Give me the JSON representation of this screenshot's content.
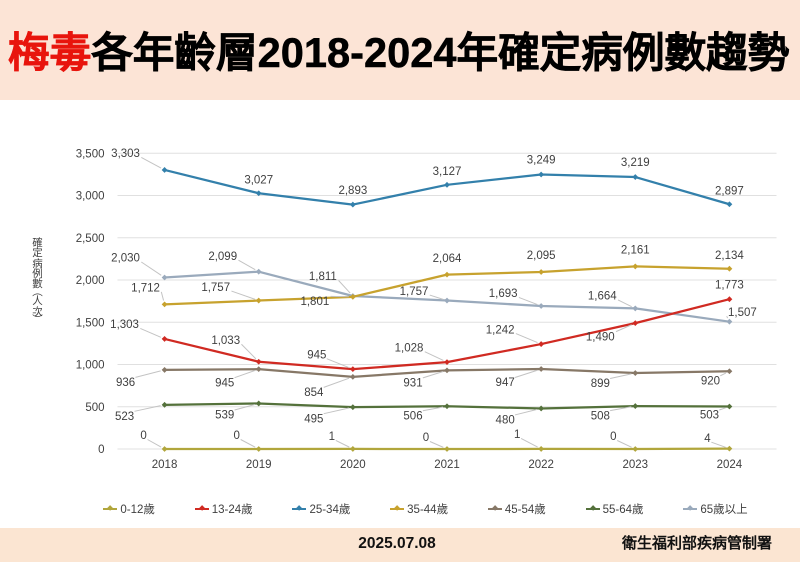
{
  "title": {
    "highlight": "梅毒",
    "rest": "各年齡層2018-2024年確定病例數趨勢"
  },
  "chart_data": {
    "type": "line",
    "title": "梅毒各年齡層2018-2024年確定病例數趨勢",
    "categories": [
      "2018",
      "2019",
      "2020",
      "2021",
      "2022",
      "2023",
      "2024"
    ],
    "xlabel": "",
    "ylabel": "確定病例數(人次)",
    "ylim": [
      0,
      3500
    ],
    "ytick_step": 500,
    "ytick_labels": [
      "0",
      "500",
      "1,000",
      "1,500",
      "2,000",
      "2,500",
      "3,000",
      "3,500"
    ],
    "grid": true,
    "legend_position": "bottom",
    "marker": "diamond",
    "series": [
      {
        "name": "0-12歲",
        "color": "#b1a63c",
        "values": [
          0,
          0,
          1,
          0,
          1,
          0,
          4
        ]
      },
      {
        "name": "13-24歲",
        "color": "#d02a22",
        "values": [
          1303,
          1033,
          945,
          1028,
          1242,
          1490,
          1773
        ]
      },
      {
        "name": "25-34歲",
        "color": "#3380ab",
        "values": [
          3303,
          3027,
          2893,
          3127,
          3249,
          3219,
          2897
        ]
      },
      {
        "name": "35-44歲",
        "color": "#c7a22e",
        "values": [
          1712,
          1757,
          1801,
          2064,
          2095,
          2161,
          2134
        ]
      },
      {
        "name": "45-54歲",
        "color": "#877867",
        "values": [
          936,
          945,
          854,
          931,
          947,
          899,
          920
        ]
      },
      {
        "name": "55-64歲",
        "color": "#54713b",
        "values": [
          523,
          539,
          495,
          506,
          480,
          508,
          503
        ]
      },
      {
        "name": "65歲以上",
        "color": "#9aaabc",
        "values": [
          2030,
          2099,
          1811,
          1757,
          1693,
          1664,
          1507
        ]
      }
    ]
  },
  "footer": {
    "date": "2025.07.08",
    "agency": "衛生福利部疾病管制署"
  },
  "colors": {
    "page_bg": "#fce4d6",
    "chart_bg": "#ffffff",
    "footer_bg": "#fbe5d2",
    "title_highlight": "#e8150d",
    "title_text": "#000000",
    "label_text": "#3f3f3f",
    "tick_text": "#404040",
    "gridline": "#e0e0e0",
    "leader": "#c3c3c3"
  }
}
